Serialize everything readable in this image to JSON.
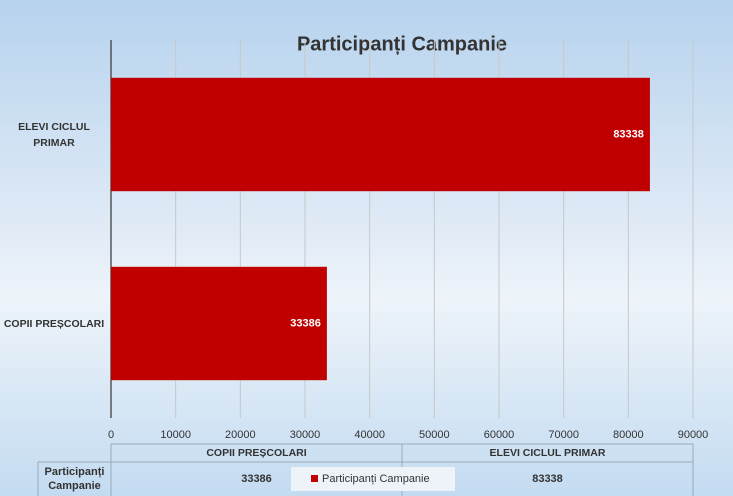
{
  "chart_data": {
    "type": "bar",
    "orientation": "horizontal",
    "title": "Participanți Campanie",
    "categories": [
      "COPII PREȘCOLARI",
      "ELEVI CICLUL PRIMAR"
    ],
    "series": [
      {
        "name": "Participanți Campanie",
        "color": "#c00000",
        "values": [
          33386,
          83338
        ]
      }
    ],
    "xlim": [
      0,
      90000
    ],
    "xticks": [
      0,
      10000,
      20000,
      30000,
      40000,
      50000,
      60000,
      70000,
      80000,
      90000
    ],
    "grid": true
  }
}
